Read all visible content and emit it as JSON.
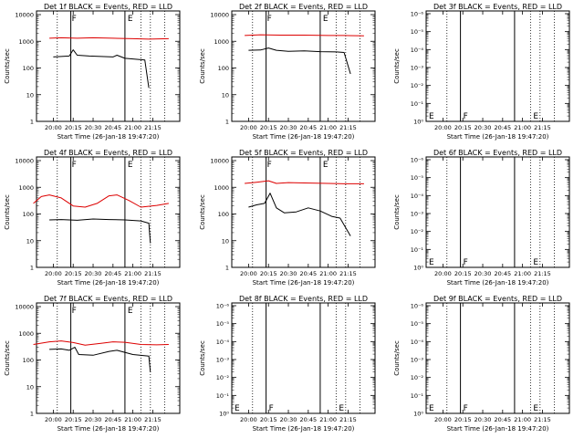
{
  "chart_data": [
    {
      "type": "line",
      "title": "Det 1f BLACK = Events, RED = LLD",
      "xlabel": "Start Time (26-Jan-18 19:47:20)",
      "ylabel": "Counts/sec",
      "x_ticks": [
        "20:00",
        "20:15",
        "20:30",
        "20:45",
        "21:00",
        "21:15"
      ],
      "y_ticks": [
        "1",
        "10",
        "100",
        "1000",
        "10000"
      ],
      "ylim": [
        1,
        10000
      ],
      "y_scale": "log",
      "markers": [
        "F",
        "E"
      ],
      "series": [
        {
          "color": "#000000",
          "values": [
            [
              20.0,
              260
            ],
            [
              20.1,
              270
            ],
            [
              20.2,
              280
            ],
            [
              20.25,
              480
            ],
            [
              20.3,
              300
            ],
            [
              20.45,
              280
            ],
            [
              20.6,
              270
            ],
            [
              20.75,
              260
            ],
            [
              20.8,
              300
            ],
            [
              20.9,
              230
            ],
            [
              21.15,
              200
            ],
            [
              21.2,
              18
            ]
          ]
        },
        {
          "color": "#dd0000",
          "values": [
            [
              19.95,
              1300
            ],
            [
              20.1,
              1350
            ],
            [
              20.3,
              1300
            ],
            [
              20.5,
              1350
            ],
            [
              20.75,
              1300
            ],
            [
              21.0,
              1250
            ],
            [
              21.2,
              1200
            ],
            [
              21.45,
              1250
            ]
          ]
        }
      ]
    },
    {
      "type": "line",
      "title": "Det 2f BLACK = Events, RED = LLD",
      "xlabel": "Start Time (26-Jan-18 19:47:20)",
      "ylabel": "Counts/sec",
      "x_ticks": [
        "20:00",
        "20:15",
        "20:30",
        "20:45",
        "21:00",
        "21:15"
      ],
      "y_ticks": [
        "1",
        "10",
        "100",
        "1000",
        "10000"
      ],
      "ylim": [
        1,
        10000
      ],
      "y_scale": "log",
      "markers": [
        "F",
        "E"
      ],
      "series": [
        {
          "color": "#000000",
          "values": [
            [
              20.0,
              460
            ],
            [
              20.15,
              470
            ],
            [
              20.25,
              560
            ],
            [
              20.35,
              460
            ],
            [
              20.5,
              420
            ],
            [
              20.7,
              440
            ],
            [
              20.9,
              410
            ],
            [
              21.1,
              400
            ],
            [
              21.2,
              380
            ],
            [
              21.28,
              60
            ]
          ]
        },
        {
          "color": "#dd0000",
          "values": [
            [
              19.95,
              1650
            ],
            [
              20.15,
              1750
            ],
            [
              20.4,
              1700
            ],
            [
              20.7,
              1700
            ],
            [
              21.0,
              1650
            ],
            [
              21.2,
              1650
            ],
            [
              21.45,
              1600
            ]
          ]
        }
      ]
    },
    {
      "type": "line",
      "title": "Det 3f BLACK = Events, RED = LLD",
      "xlabel": "Start Time (26-Jan-18 19:47:20)",
      "ylabel": "Counts/sec",
      "x_ticks": [
        "20:00",
        "20:15",
        "20:30",
        "20:45",
        "21:00",
        "21:15"
      ],
      "y_ticks": [
        "10⁰",
        "10⁻¹",
        "10⁻²",
        "10⁻³",
        "10⁻⁴",
        "10⁻⁵",
        "10⁻⁶"
      ],
      "y_scale": "log",
      "markers": [
        "E",
        "F",
        "E"
      ],
      "series": []
    },
    {
      "type": "line",
      "title": "Det 4f BLACK = Events, RED = LLD",
      "xlabel": "Start Time (26-Jan-18 19:47:20)",
      "ylabel": "Counts/sec",
      "x_ticks": [
        "20:00",
        "20:15",
        "20:30",
        "20:45",
        "21:00",
        "21:15"
      ],
      "y_ticks": [
        "1",
        "10",
        "100",
        "1000",
        "10000"
      ],
      "ylim": [
        1,
        10000
      ],
      "y_scale": "log",
      "markers": [
        "F",
        "E"
      ],
      "series": [
        {
          "color": "#000000",
          "values": [
            [
              19.95,
              60
            ],
            [
              20.1,
              62
            ],
            [
              20.3,
              58
            ],
            [
              20.5,
              65
            ],
            [
              20.7,
              62
            ],
            [
              20.9,
              60
            ],
            [
              21.1,
              55
            ],
            [
              21.2,
              45
            ],
            [
              21.22,
              8
            ]
          ]
        },
        {
          "color": "#dd0000",
          "values": [
            [
              19.75,
              250
            ],
            [
              19.85,
              450
            ],
            [
              19.95,
              520
            ],
            [
              20.1,
              400
            ],
            [
              20.25,
              200
            ],
            [
              20.4,
              180
            ],
            [
              20.55,
              250
            ],
            [
              20.7,
              480
            ],
            [
              20.8,
              520
            ],
            [
              20.95,
              320
            ],
            [
              21.1,
              180
            ],
            [
              21.3,
              210
            ],
            [
              21.45,
              250
            ]
          ]
        }
      ]
    },
    {
      "type": "line",
      "title": "Det 5f BLACK = Events, RED = LLD",
      "xlabel": "Start Time (26-Jan-18 19:47:20)",
      "ylabel": "Counts/sec",
      "x_ticks": [
        "20:00",
        "20:15",
        "20:30",
        "20:45",
        "21:00",
        "21:15"
      ],
      "y_ticks": [
        "1",
        "10",
        "100",
        "1000",
        "10000"
      ],
      "ylim": [
        1,
        10000
      ],
      "y_scale": "log",
      "markers": [
        "F",
        "E"
      ],
      "series": [
        {
          "color": "#000000",
          "values": [
            [
              20.0,
              180
            ],
            [
              20.1,
              220
            ],
            [
              20.2,
              250
            ],
            [
              20.27,
              600
            ],
            [
              20.35,
              170
            ],
            [
              20.45,
              110
            ],
            [
              20.6,
              120
            ],
            [
              20.75,
              170
            ],
            [
              20.9,
              130
            ],
            [
              21.05,
              80
            ],
            [
              21.15,
              70
            ],
            [
              21.28,
              15
            ]
          ]
        },
        {
          "color": "#dd0000",
          "values": [
            [
              19.95,
              1400
            ],
            [
              20.1,
              1550
            ],
            [
              20.25,
              1750
            ],
            [
              20.35,
              1400
            ],
            [
              20.5,
              1500
            ],
            [
              20.7,
              1450
            ],
            [
              21.0,
              1400
            ],
            [
              21.2,
              1350
            ],
            [
              21.45,
              1350
            ]
          ]
        }
      ]
    },
    {
      "type": "line",
      "title": "Det 6f BLACK = Events, RED = LLD",
      "xlabel": "Start Time (26-Jan-18 19:47:20)",
      "ylabel": "Counts/sec",
      "x_ticks": [
        "20:00",
        "20:15",
        "20:30",
        "20:45",
        "21:00",
        "21:15"
      ],
      "y_ticks": [
        "10⁰",
        "10⁻¹",
        "10⁻²",
        "10⁻³",
        "10⁻⁴",
        "10⁻⁵",
        "10⁻⁶"
      ],
      "y_scale": "log",
      "markers": [
        "E",
        "F",
        "E"
      ],
      "series": []
    },
    {
      "type": "line",
      "title": "Det 7f BLACK = Events, RED = LLD",
      "xlabel": "Start Time (26-Jan-18 19:47:20)",
      "ylabel": "Counts/sec",
      "x_ticks": [
        "20:00",
        "20:15",
        "20:30",
        "20:45",
        "21:00",
        "21:15"
      ],
      "y_ticks": [
        "1",
        "10",
        "100",
        "1000",
        "10000"
      ],
      "ylim": [
        1,
        10000
      ],
      "y_scale": "log",
      "markers": [
        "F",
        "E"
      ],
      "series": [
        {
          "color": "#000000",
          "values": [
            [
              19.95,
              250
            ],
            [
              20.1,
              260
            ],
            [
              20.2,
              230
            ],
            [
              20.27,
              300
            ],
            [
              20.32,
              160
            ],
            [
              20.5,
              150
            ],
            [
              20.7,
              210
            ],
            [
              20.8,
              230
            ],
            [
              21.0,
              160
            ],
            [
              21.2,
              140
            ],
            [
              21.22,
              35
            ]
          ]
        },
        {
          "color": "#dd0000",
          "values": [
            [
              19.75,
              380
            ],
            [
              19.95,
              480
            ],
            [
              20.1,
              520
            ],
            [
              20.25,
              450
            ],
            [
              20.4,
              360
            ],
            [
              20.6,
              420
            ],
            [
              20.75,
              480
            ],
            [
              20.9,
              460
            ],
            [
              21.1,
              380
            ],
            [
              21.3,
              370
            ],
            [
              21.45,
              380
            ]
          ]
        }
      ]
    },
    {
      "type": "line",
      "title": "Det 8f BLACK = Events, RED = LLD",
      "xlabel": "Start Time (26-Jan-18 19:47:20)",
      "ylabel": "Counts/sec",
      "x_ticks": [
        "20:00",
        "20:15",
        "20:30",
        "20:45",
        "21:00",
        "21:15"
      ],
      "y_ticks": [
        "10⁰",
        "10⁻¹",
        "10⁻²",
        "10⁻³",
        "10⁻⁴",
        "10⁻⁵",
        "10⁻⁶"
      ],
      "y_scale": "log",
      "markers": [
        "E",
        "F",
        "E"
      ],
      "series": []
    },
    {
      "type": "line",
      "title": "Det 9f BLACK = Events, RED = LLD",
      "xlabel": "Start Time (26-Jan-18 19:47:20)",
      "ylabel": "Counts/sec",
      "x_ticks": [
        "20:00",
        "20:15",
        "20:30",
        "20:45",
        "21:00",
        "21:15"
      ],
      "y_ticks": [
        "10⁰",
        "10⁻¹",
        "10⁻²",
        "10⁻³",
        "10⁻⁴",
        "10⁻⁵",
        "10⁻⁶"
      ],
      "y_scale": "log",
      "markers": [
        "E",
        "F",
        "E"
      ],
      "series": []
    }
  ]
}
